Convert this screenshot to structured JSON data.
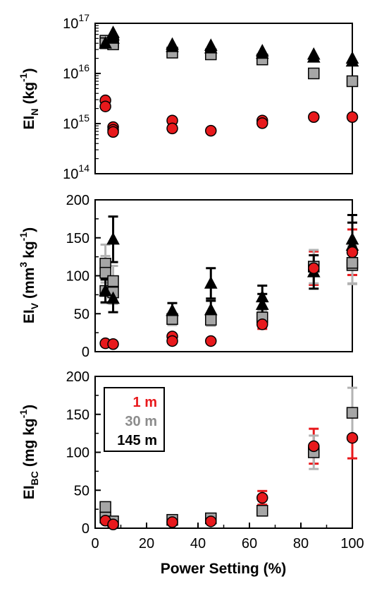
{
  "chart_data": [
    {
      "type": "scatter",
      "panel": "top",
      "ylabel_main": "EI",
      "ylabel_sub": "N",
      "ylabel_unit": "(kg",
      "ylabel_unit_sup": "-1",
      "ylabel_close": ")",
      "yscale": "log",
      "ylim": [
        100000000000000.0,
        1e+17
      ],
      "yticks": [
        {
          "value": 100000000000000.0,
          "base": "10",
          "exp": "14"
        },
        {
          "value": 1000000000000000.0,
          "base": "10",
          "exp": "15"
        },
        {
          "value": 1e+16,
          "base": "10",
          "exp": "16"
        },
        {
          "value": 1e+17,
          "base": "10",
          "exp": "17"
        }
      ],
      "xlim": [
        0,
        100
      ],
      "series": [
        {
          "name": "1 m",
          "marker": "circle",
          "color": "#e8191c",
          "points": [
            {
              "x": 4,
              "y": 2900000000000000.0
            },
            {
              "x": 4,
              "y": 2200000000000000.0
            },
            {
              "x": 7,
              "y": 850000000000000.0
            },
            {
              "x": 7,
              "y": 750000000000000.0
            },
            {
              "x": 7,
              "y": 680000000000000.0
            },
            {
              "x": 30,
              "y": 1150000000000000.0
            },
            {
              "x": 30,
              "y": 800000000000000.0
            },
            {
              "x": 45,
              "y": 720000000000000.0
            },
            {
              "x": 65,
              "y": 1150000000000000.0
            },
            {
              "x": 65,
              "y": 1020000000000000.0
            },
            {
              "x": 85,
              "y": 1350000000000000.0
            },
            {
              "x": 100,
              "y": 1350000000000000.0
            }
          ]
        },
        {
          "name": "30 m",
          "marker": "square",
          "color": "#a6a6a6",
          "points": [
            {
              "x": 4,
              "y": 4.5e+16
            },
            {
              "x": 4,
              "y": 4e+16
            },
            {
              "x": 7,
              "y": 4.2e+16
            },
            {
              "x": 7,
              "y": 3.8e+16
            },
            {
              "x": 30,
              "y": 2.6e+16
            },
            {
              "x": 45,
              "y": 2.4e+16
            },
            {
              "x": 65,
              "y": 1.9e+16
            },
            {
              "x": 85,
              "y": 1e+16
            },
            {
              "x": 100,
              "y": 7000000000000000.0
            }
          ]
        },
        {
          "name": "145 m",
          "marker": "triangle",
          "color": "#000000",
          "points": [
            {
              "x": 4,
              "y": 4e+16
            },
            {
              "x": 7,
              "y": 6.5e+16
            },
            {
              "x": 7,
              "y": 5.8e+16
            },
            {
              "x": 7,
              "y": 5e+16
            },
            {
              "x": 30,
              "y": 3.8e+16
            },
            {
              "x": 30,
              "y": 3.4e+16
            },
            {
              "x": 45,
              "y": 3.6e+16
            },
            {
              "x": 45,
              "y": 3.2e+16
            },
            {
              "x": 65,
              "y": 2.8e+16
            },
            {
              "x": 65,
              "y": 2.5e+16
            },
            {
              "x": 85,
              "y": 2.4e+16
            },
            {
              "x": 85,
              "y": 2.1e+16
            },
            {
              "x": 100,
              "y": 2e+16
            },
            {
              "x": 100,
              "y": 1.75e+16
            }
          ]
        }
      ]
    },
    {
      "type": "scatter",
      "panel": "middle",
      "ylabel_main": "EI",
      "ylabel_sub": "V",
      "ylabel_unit": "(mm",
      "ylabel_unit_sup": "3",
      "ylabel_unit2": "kg",
      "ylabel_unit2_sup": "-1",
      "ylabel_close": ")",
      "ylim": [
        0,
        200
      ],
      "yticks": [
        0,
        50,
        100,
        150,
        200
      ],
      "xlim": [
        0,
        100
      ],
      "series": [
        {
          "name": "1 m",
          "marker": "circle",
          "color": "#e8191c",
          "points": [
            {
              "x": 4,
              "y": 11
            },
            {
              "x": 7,
              "y": 10
            },
            {
              "x": 30,
              "y": 20
            },
            {
              "x": 30,
              "y": 14
            },
            {
              "x": 45,
              "y": 14
            },
            {
              "x": 65,
              "y": 36,
              "err": 6
            },
            {
              "x": 85,
              "y": 110,
              "err": 22
            },
            {
              "x": 100,
              "y": 131,
              "err": 30
            }
          ]
        },
        {
          "name": "30 m",
          "marker": "square",
          "color": "#a6a6a6",
          "points": [
            {
              "x": 4,
              "y": 116,
              "err": 25
            },
            {
              "x": 4,
              "y": 104,
              "err": 22
            },
            {
              "x": 4,
              "y": 80,
              "err": 16
            },
            {
              "x": 7,
              "y": 93,
              "err": 20
            },
            {
              "x": 7,
              "y": 78,
              "err": 15
            },
            {
              "x": 30,
              "y": 43,
              "err": 8
            },
            {
              "x": 45,
              "y": 42,
              "err": 8
            },
            {
              "x": 65,
              "y": 45,
              "err": 9
            },
            {
              "x": 85,
              "y": 112,
              "err": 22
            },
            {
              "x": 100,
              "y": 114,
              "err": 25
            },
            {
              "x": 100,
              "y": 117,
              "err": 27
            }
          ]
        },
        {
          "name": "145 m",
          "marker": "triangle",
          "color": "#000000",
          "points": [
            {
              "x": 4,
              "y": 80,
              "err": 15
            },
            {
              "x": 7,
              "y": 148,
              "err": 30
            },
            {
              "x": 7,
              "y": 70,
              "err": 18
            },
            {
              "x": 30,
              "y": 54,
              "err": 10
            },
            {
              "x": 45,
              "y": 90,
              "err": 20
            },
            {
              "x": 45,
              "y": 55,
              "err": 12
            },
            {
              "x": 65,
              "y": 72,
              "err": 15
            },
            {
              "x": 65,
              "y": 62,
              "err": 14
            },
            {
              "x": 85,
              "y": 105,
              "err": 22
            },
            {
              "x": 100,
              "y": 148,
              "err": 32
            },
            {
              "x": 100,
              "y": 140,
              "err": 30
            }
          ]
        }
      ]
    },
    {
      "type": "scatter",
      "panel": "bottom",
      "ylabel_main": "EI",
      "ylabel_sub": "BC",
      "ylabel_unit": "(mg kg",
      "ylabel_unit_sup": "-1",
      "ylabel_close": ")",
      "ylim": [
        0,
        200
      ],
      "yticks": [
        0,
        50,
        100,
        150,
        200
      ],
      "xlim": [
        0,
        100
      ],
      "xticks": [
        0,
        20,
        40,
        60,
        80,
        100
      ],
      "xlabel": "Power Setting (%)",
      "legend": {
        "placement": "top-left",
        "entries": [
          {
            "label": "1 m",
            "color": "#e8191c"
          },
          {
            "label": "30 m",
            "color": "#8c8c8c"
          },
          {
            "label": "145 m",
            "color": "#000000"
          }
        ]
      },
      "series": [
        {
          "name": "1 m",
          "marker": "circle",
          "color": "#e8191c",
          "points": [
            {
              "x": 4,
              "y": 10
            },
            {
              "x": 7,
              "y": 5
            },
            {
              "x": 30,
              "y": 8
            },
            {
              "x": 45,
              "y": 9
            },
            {
              "x": 65,
              "y": 40,
              "err": 9
            },
            {
              "x": 85,
              "y": 108,
              "err": 23
            },
            {
              "x": 100,
              "y": 119,
              "err": 27
            }
          ]
        },
        {
          "name": "30 m",
          "marker": "square",
          "color": "#a6a6a6",
          "points": [
            {
              "x": 4,
              "y": 28
            },
            {
              "x": 4,
              "y": 14
            },
            {
              "x": 7,
              "y": 9
            },
            {
              "x": 30,
              "y": 11
            },
            {
              "x": 45,
              "y": 13
            },
            {
              "x": 65,
              "y": 23
            },
            {
              "x": 85,
              "y": 100,
              "err": 22
            },
            {
              "x": 100,
              "y": 152,
              "err": 33
            }
          ]
        }
      ]
    }
  ]
}
